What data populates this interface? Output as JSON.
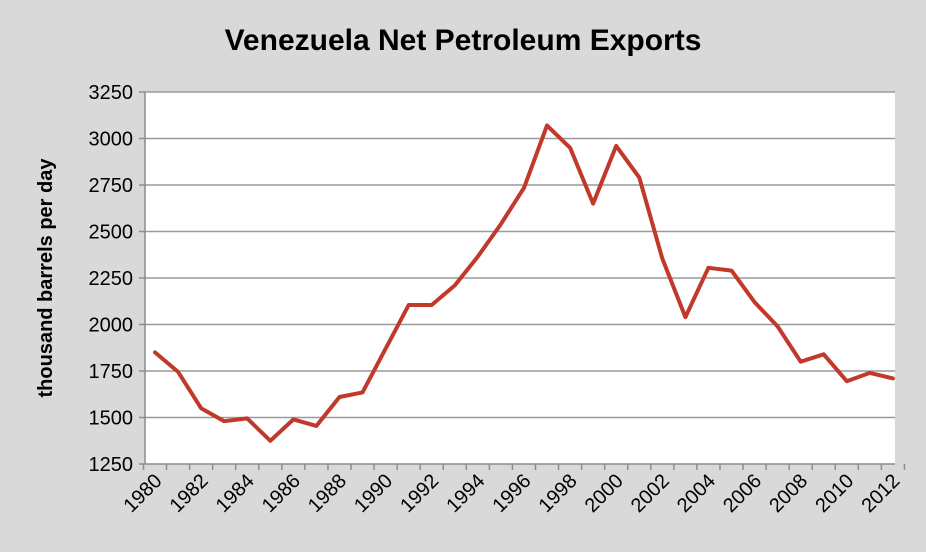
{
  "chart_data": {
    "type": "line",
    "title": "Venezuela Net Petroleum Exports",
    "xlabel": "",
    "ylabel": "thousand barrels per day",
    "ylim": [
      1250,
      3250
    ],
    "yticks": [
      1250,
      1500,
      1750,
      2000,
      2250,
      2500,
      2750,
      3000,
      3250
    ],
    "x": [
      1980,
      1981,
      1982,
      1983,
      1984,
      1985,
      1986,
      1987,
      1988,
      1989,
      1990,
      1991,
      1992,
      1993,
      1994,
      1995,
      1996,
      1997,
      1998,
      1999,
      2000,
      2001,
      2002,
      2003,
      2004,
      2005,
      2006,
      2007,
      2008,
      2009,
      2010,
      2011,
      2012
    ],
    "xticks": [
      "1980",
      "1982",
      "1984",
      "1986",
      "1988",
      "1990",
      "1992",
      "1994",
      "1996",
      "1998",
      "2000",
      "2002",
      "2004",
      "2006",
      "2008",
      "2010",
      "2012"
    ],
    "grid": true,
    "series": [
      {
        "color": "#c0392b",
        "values": [
          1850,
          1745,
          1550,
          1480,
          1495,
          1375,
          1490,
          1455,
          1610,
          1635,
          1870,
          2105,
          2105,
          2210,
          2365,
          2540,
          2735,
          3070,
          2950,
          2650,
          2960,
          2790,
          2355,
          2040,
          2305,
          2290,
          2120,
          1990,
          1800,
          1840,
          1695,
          1740,
          1710
        ]
      }
    ]
  }
}
